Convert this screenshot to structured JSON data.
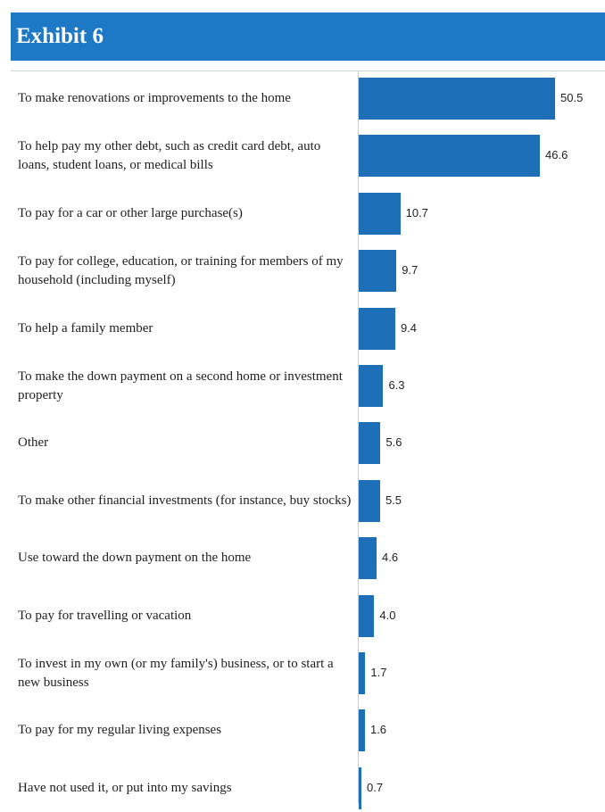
{
  "header": {
    "title": "Exhibit 6"
  },
  "chart_data": {
    "type": "bar",
    "orientation": "horizontal",
    "title": "Exhibit 6",
    "categories": [
      "To make renovations or improvements to the home",
      "To help pay my other debt, such as credit card debt, auto loans, student loans, or medical bills",
      "To pay for a car or other large purchase(s)",
      "To pay for college, education, or training for members of my household (including myself)",
      "To help a family member",
      "To make the down payment on a second home or investment property",
      "Other",
      "To make other financial investments (for instance, buy stocks)",
      "Use toward the down payment on the home",
      "To pay for travelling or vacation",
      "To invest in my own (or my family's) business, or to start a new business",
      "To pay for my regular living expenses",
      "Have not used it, or put into my savings"
    ],
    "values": [
      50.5,
      46.6,
      10.7,
      9.7,
      9.4,
      6.3,
      5.6,
      5.5,
      4.6,
      4.0,
      1.7,
      1.6,
      0.7
    ],
    "value_labels": [
      "50.5",
      "46.6",
      "10.7",
      "9.7",
      "9.4",
      "6.3",
      "5.6",
      "5.5",
      "4.6",
      "4.0",
      "1.7",
      "1.6",
      "0.7"
    ],
    "bar_color": "#1d70b8",
    "header_color": "#1d78c6",
    "grid": false,
    "legend": "none"
  }
}
